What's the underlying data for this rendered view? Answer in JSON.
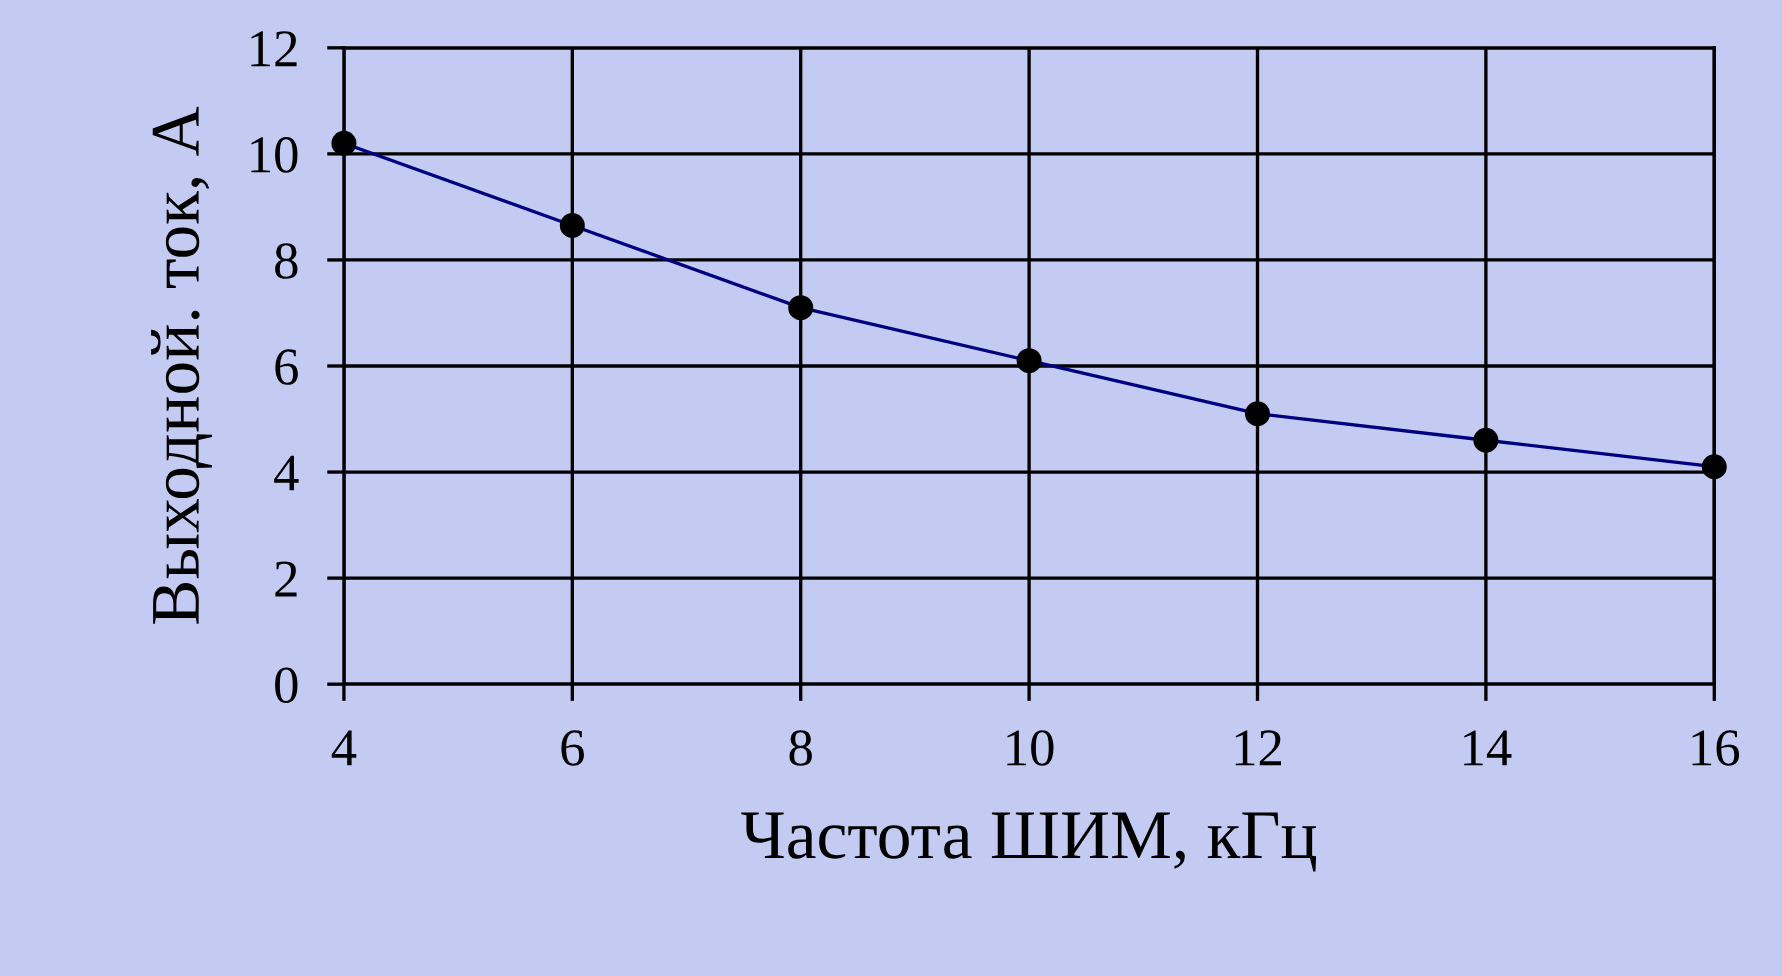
{
  "chart_data": {
    "type": "line",
    "xlabel": "Частота ШИМ, кГц",
    "ylabel": "Выходной. ток, А",
    "x": [
      4,
      6,
      8,
      10,
      12,
      14,
      16
    ],
    "series": [
      {
        "color": "#000080",
        "values": [
          10.2,
          8.65,
          7.1,
          6.1,
          5.1,
          4.6,
          4.1
        ]
      }
    ],
    "xlim": [
      4,
      16
    ],
    "xticks": [
      4,
      6,
      8,
      10,
      12,
      14,
      16
    ],
    "ylim": [
      0,
      12
    ],
    "yticks": [
      0,
      2,
      4,
      6,
      8,
      10,
      12
    ],
    "grid": true,
    "marker": "circle",
    "line_style": "solid"
  }
}
